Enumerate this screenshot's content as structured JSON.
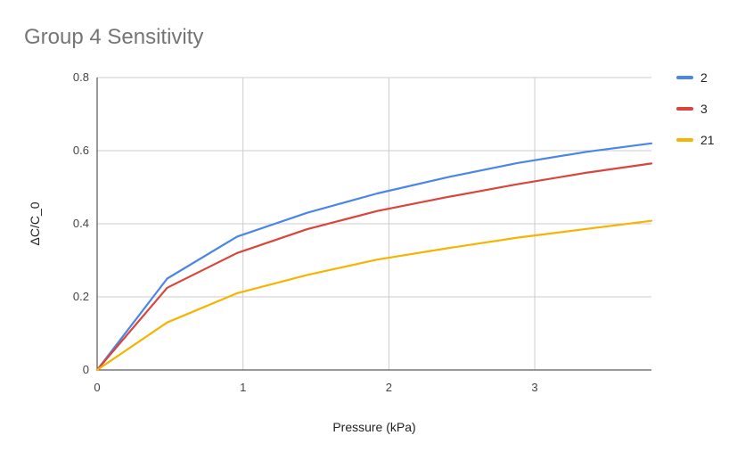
{
  "chart_data": {
    "type": "line",
    "title": "Group 4 Sensitivity",
    "xlabel": "Pressure (kPa)",
    "ylabel": "ΔC/C_0",
    "xlim": [
      0,
      3.8
    ],
    "ylim": [
      0,
      0.8
    ],
    "x_ticks": [
      0,
      1,
      2,
      3
    ],
    "y_ticks": [
      0,
      0.2,
      0.4,
      0.6,
      0.8
    ],
    "x_tick_labels": [
      "0",
      "1",
      "2",
      "3"
    ],
    "y_tick_labels": [
      "0",
      "0.2",
      "0.4",
      "0.6",
      "0.8"
    ],
    "grid": true,
    "legend_position": "right",
    "series": [
      {
        "name": "2",
        "color": "#4a86e8",
        "x": [
          0,
          0.48,
          0.96,
          1.44,
          1.92,
          2.4,
          2.88,
          3.36,
          3.8
        ],
        "y": [
          0,
          0.25,
          0.365,
          0.43,
          0.483,
          0.527,
          0.566,
          0.597,
          0.62
        ]
      },
      {
        "name": "3",
        "color": "#d9453b",
        "x": [
          0,
          0.48,
          0.96,
          1.44,
          1.92,
          2.4,
          2.88,
          3.36,
          3.8
        ],
        "y": [
          0,
          0.225,
          0.32,
          0.385,
          0.435,
          0.473,
          0.508,
          0.54,
          0.565
        ]
      },
      {
        "name": "21",
        "color": "#f4b400",
        "x": [
          0,
          0.48,
          0.96,
          1.44,
          1.92,
          2.4,
          2.88,
          3.36,
          3.8
        ],
        "y": [
          0,
          0.13,
          0.21,
          0.26,
          0.302,
          0.333,
          0.362,
          0.386,
          0.408
        ]
      }
    ]
  }
}
